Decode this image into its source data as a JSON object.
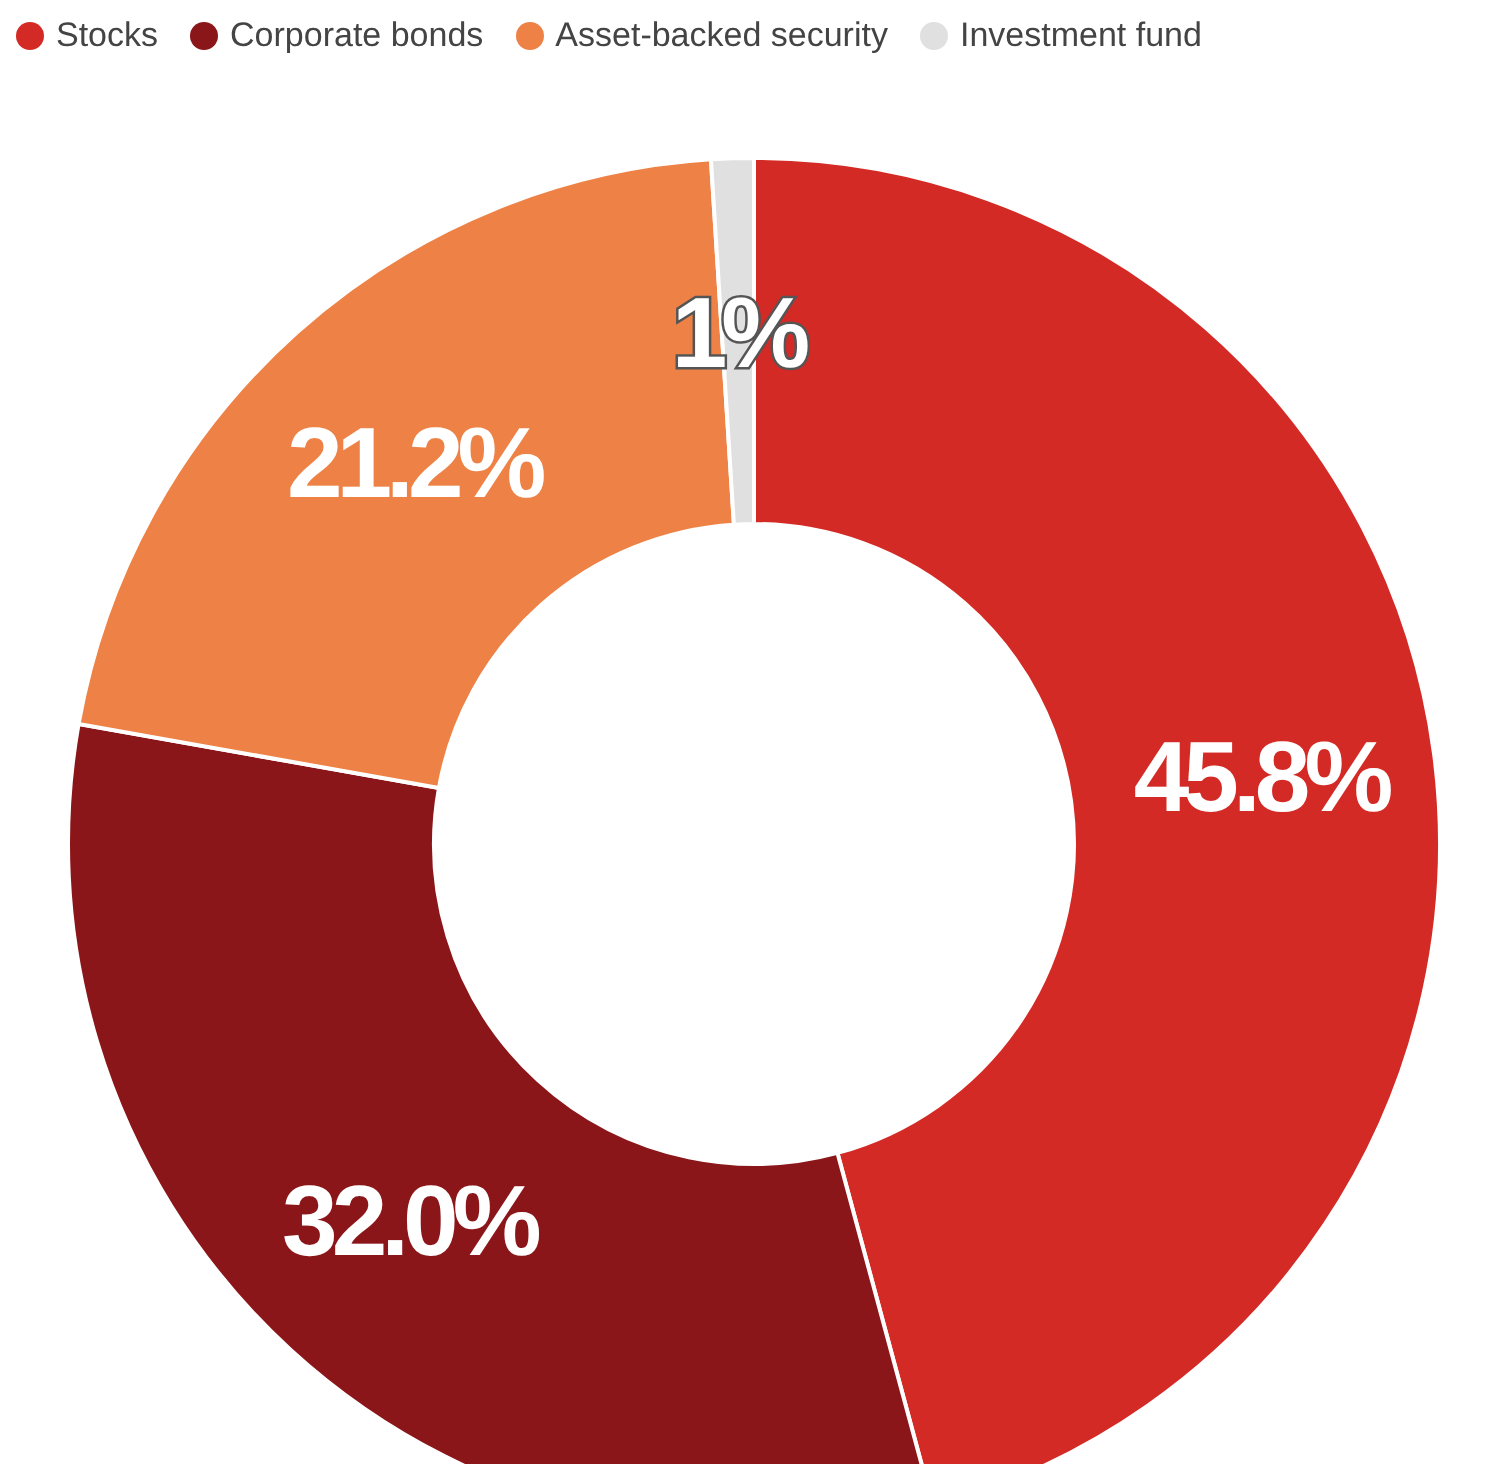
{
  "chart_data": {
    "type": "donut",
    "categories": [
      "Stocks",
      "Corporate bonds",
      "Asset-backed security",
      "Investment fund"
    ],
    "values": [
      45.8,
      32.0,
      21.2,
      1
    ],
    "colors": [
      "#d42a25",
      "#8b161a",
      "#ee8246",
      "#e0e0e0"
    ],
    "value_labels": [
      "45.8%",
      "32.0%",
      "21.2%",
      "1%"
    ],
    "legend": "top left"
  }
}
